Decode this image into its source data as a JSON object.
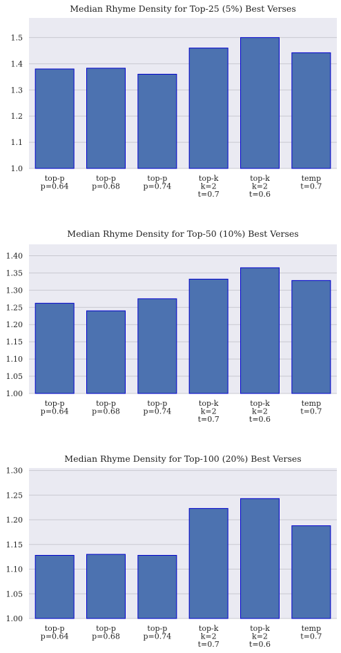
{
  "colors": {
    "plot_background": "#eaeaf2",
    "bar_fill": "#4c72b0",
    "bar_edge": "#0000cc",
    "grid": "#c8c8d0"
  },
  "chart_data": [
    {
      "type": "bar",
      "title": "Median Rhyme Density for Top-25 (5%) Best Verses",
      "categories": [
        [
          "top-p",
          "p=0.64"
        ],
        [
          "top-p",
          "p=0.68"
        ],
        [
          "top-p",
          "p=0.74"
        ],
        [
          "top-k",
          "k=2",
          "t=0.7"
        ],
        [
          "top-k",
          "k=2",
          "t=0.6"
        ],
        [
          "temp",
          "t=0.7"
        ]
      ],
      "values": [
        1.38,
        1.383,
        1.36,
        1.46,
        1.5,
        1.442
      ],
      "ylim": [
        1.0,
        1.575
      ],
      "yticks": [
        "1.0",
        "1.1",
        "1.2",
        "1.3",
        "1.4",
        "1.5"
      ],
      "grid": true
    },
    {
      "type": "bar",
      "title": "Median Rhyme Density for Top-50 (10%) Best Verses",
      "categories": [
        [
          "top-p",
          "p=0.64"
        ],
        [
          "top-p",
          "p=0.68"
        ],
        [
          "top-p",
          "p=0.74"
        ],
        [
          "top-k",
          "k=2",
          "t=0.7"
        ],
        [
          "top-k",
          "k=2",
          "t=0.6"
        ],
        [
          "temp",
          "t=0.7"
        ]
      ],
      "values": [
        1.262,
        1.24,
        1.275,
        1.332,
        1.365,
        1.328
      ],
      "ylim": [
        1.0,
        1.433
      ],
      "yticks": [
        "1.00",
        "1.05",
        "1.10",
        "1.15",
        "1.20",
        "1.25",
        "1.30",
        "1.35",
        "1.40"
      ],
      "grid": true
    },
    {
      "type": "bar",
      "title": "Median Rhyme Density for Top-100 (20%) Best Verses",
      "categories": [
        [
          "top-p",
          "p=0.64"
        ],
        [
          "top-p",
          "p=0.68"
        ],
        [
          "top-p",
          "p=0.74"
        ],
        [
          "top-k",
          "k=2",
          "t=0.7"
        ],
        [
          "top-k",
          "k=2",
          "t=0.6"
        ],
        [
          "temp",
          "t=0.7"
        ]
      ],
      "values": [
        1.128,
        1.13,
        1.128,
        1.223,
        1.243,
        1.188
      ],
      "ylim": [
        1.0,
        1.305
      ],
      "yticks": [
        "1.00",
        "1.05",
        "1.10",
        "1.15",
        "1.20",
        "1.25",
        "1.30"
      ],
      "grid": true
    }
  ]
}
